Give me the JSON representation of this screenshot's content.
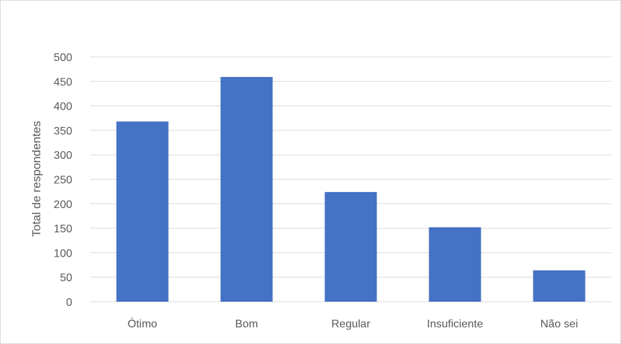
{
  "chart_data": {
    "type": "bar",
    "title": "",
    "xlabel": "",
    "ylabel": "Total de respondentes",
    "categories": [
      "Ótimo",
      "Bom",
      "Regular",
      "Insuficiente",
      "Não sei"
    ],
    "values": [
      368,
      459,
      224,
      152,
      64
    ],
    "ylim": [
      0,
      500
    ],
    "yticks": [
      0,
      50,
      100,
      150,
      200,
      250,
      300,
      350,
      400,
      450,
      500
    ],
    "grid": true,
    "legend": "none",
    "bar_color": "#4472c4",
    "grid_color": "#d9d9d9"
  }
}
